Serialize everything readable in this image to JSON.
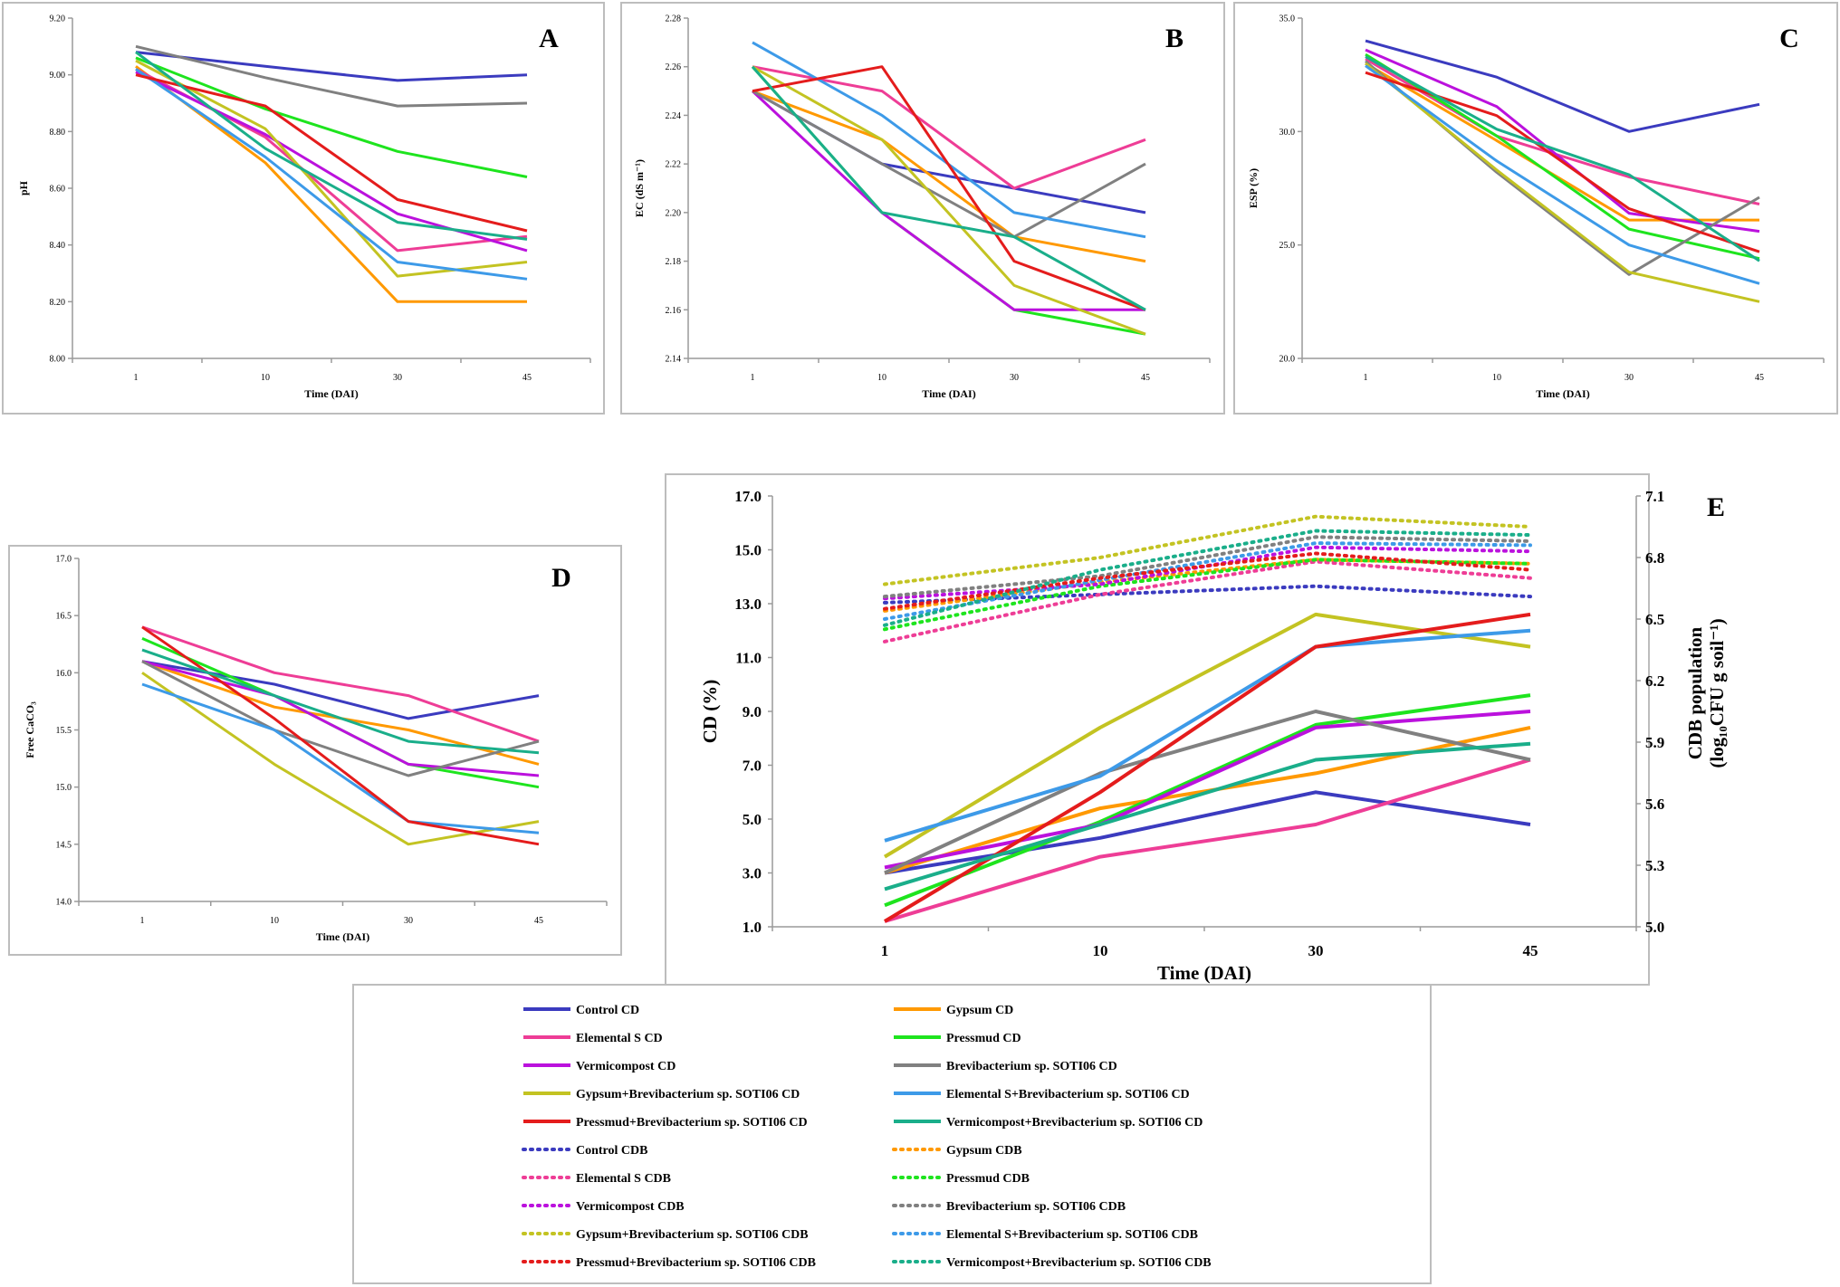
{
  "colors": {
    "Control": "#3b3bbf",
    "Gypsum": "#ff9900",
    "ElementalS": "#ee3d96",
    "Pressmud": "#1ee41e",
    "Vermicompost": "#bb11dd",
    "Brev": "#808080",
    "GypsumBrev": "#c3c322",
    "ElementalSBrev": "#3d9ae8",
    "PressmudBrev": "#e41c1c",
    "VermiBrev": "#1aae8a"
  },
  "chart_data": [
    {
      "id": "A",
      "type": "line",
      "panel_label": "A",
      "categories": [
        "1",
        "10",
        "30",
        "45"
      ],
      "xlabel": "Time (DAI)",
      "ylabel": "pH",
      "ylim": [
        8.0,
        9.2
      ],
      "yticks": [
        "8.00",
        "8.20",
        "8.40",
        "8.60",
        "8.80",
        "9.00",
        "9.20"
      ],
      "series": [
        {
          "name": "Control",
          "values": [
            9.08,
            9.03,
            8.98,
            9.0
          ]
        },
        {
          "name": "Gypsum",
          "values": [
            9.03,
            8.69,
            8.2,
            8.2
          ]
        },
        {
          "name": "ElementalS",
          "values": [
            9.02,
            8.78,
            8.38,
            8.43
          ]
        },
        {
          "name": "Pressmud",
          "values": [
            9.06,
            8.88,
            8.73,
            8.64
          ]
        },
        {
          "name": "Vermicompost",
          "values": [
            9.01,
            8.79,
            8.51,
            8.38
          ]
        },
        {
          "name": "Brev",
          "values": [
            9.1,
            8.99,
            8.89,
            8.9
          ]
        },
        {
          "name": "GypsumBrev",
          "values": [
            9.05,
            8.81,
            8.29,
            8.34
          ]
        },
        {
          "name": "ElementalSBrev",
          "values": [
            9.02,
            8.71,
            8.34,
            8.28
          ]
        },
        {
          "name": "PressmudBrev",
          "values": [
            9.0,
            8.89,
            8.56,
            8.45
          ]
        },
        {
          "name": "VermiBrev",
          "values": [
            9.08,
            8.74,
            8.48,
            8.42
          ]
        }
      ]
    },
    {
      "id": "B",
      "type": "line",
      "panel_label": "B",
      "categories": [
        "1",
        "10",
        "30",
        "45"
      ],
      "xlabel": "Time (DAI)",
      "ylabel": "EC (dS m⁻¹)",
      "ylim": [
        2.14,
        2.28
      ],
      "yticks": [
        "2.14",
        "2.16",
        "2.18",
        "2.20",
        "2.22",
        "2.24",
        "2.26",
        "2.28"
      ],
      "series": [
        {
          "name": "Control",
          "values": [
            2.25,
            2.22,
            2.21,
            2.2
          ]
        },
        {
          "name": "Gypsum",
          "values": [
            2.25,
            2.23,
            2.19,
            2.18
          ]
        },
        {
          "name": "ElementalS",
          "values": [
            2.26,
            2.25,
            2.21,
            2.23
          ]
        },
        {
          "name": "Pressmud",
          "values": [
            2.26,
            2.2,
            2.16,
            2.15
          ]
        },
        {
          "name": "Vermicompost",
          "values": [
            2.25,
            2.2,
            2.16,
            2.16
          ]
        },
        {
          "name": "Brev",
          "values": [
            2.25,
            2.22,
            2.19,
            2.22
          ]
        },
        {
          "name": "GypsumBrev",
          "values": [
            2.26,
            2.23,
            2.17,
            2.15
          ]
        },
        {
          "name": "ElementalSBrev",
          "values": [
            2.27,
            2.24,
            2.2,
            2.19
          ]
        },
        {
          "name": "PressmudBrev",
          "values": [
            2.25,
            2.26,
            2.18,
            2.16
          ]
        },
        {
          "name": "VermiBrev",
          "values": [
            2.26,
            2.2,
            2.19,
            2.16
          ]
        }
      ]
    },
    {
      "id": "C",
      "type": "line",
      "panel_label": "C",
      "categories": [
        "1",
        "10",
        "30",
        "45"
      ],
      "xlabel": "Time (DAI)",
      "ylabel": "ESP (%)",
      "ylim": [
        20.0,
        35.0
      ],
      "yticks": [
        "20.0",
        "25.0",
        "30.0",
        "35.0"
      ],
      "series": [
        {
          "name": "Control",
          "values": [
            34.0,
            32.4,
            30.0,
            31.2
          ]
        },
        {
          "name": "Gypsum",
          "values": [
            33.0,
            29.6,
            26.1,
            26.1
          ]
        },
        {
          "name": "ElementalS",
          "values": [
            33.2,
            29.8,
            28.0,
            26.8
          ]
        },
        {
          "name": "Pressmud",
          "values": [
            33.4,
            29.8,
            25.7,
            24.4
          ]
        },
        {
          "name": "Vermicompost",
          "values": [
            33.6,
            31.1,
            26.4,
            25.6
          ]
        },
        {
          "name": "Brev",
          "values": [
            33.1,
            28.2,
            23.7,
            27.1
          ]
        },
        {
          "name": "GypsumBrev",
          "values": [
            33.0,
            28.3,
            23.8,
            22.5
          ]
        },
        {
          "name": "ElementalSBrev",
          "values": [
            32.9,
            28.7,
            25.0,
            23.3
          ]
        },
        {
          "name": "PressmudBrev",
          "values": [
            32.6,
            30.7,
            26.6,
            24.7
          ]
        },
        {
          "name": "VermiBrev",
          "values": [
            33.3,
            30.1,
            28.1,
            24.3
          ]
        }
      ]
    },
    {
      "id": "D",
      "type": "line",
      "panel_label": "D",
      "categories": [
        "1",
        "10",
        "30",
        "45"
      ],
      "xlabel": "Time (DAI)",
      "ylabel": "Free CaCO₃",
      "ylim": [
        14.0,
        17.0
      ],
      "yticks": [
        "14.0",
        "14.5",
        "15.0",
        "15.5",
        "16.0",
        "16.5",
        "17.0"
      ],
      "series": [
        {
          "name": "Control",
          "values": [
            16.1,
            15.9,
            15.6,
            15.8
          ]
        },
        {
          "name": "Gypsum",
          "values": [
            16.1,
            15.7,
            15.5,
            15.2
          ]
        },
        {
          "name": "ElementalS",
          "values": [
            16.4,
            16.0,
            15.8,
            15.4
          ]
        },
        {
          "name": "Pressmud",
          "values": [
            16.3,
            15.8,
            15.2,
            15.0
          ]
        },
        {
          "name": "Vermicompost",
          "values": [
            16.1,
            15.8,
            15.2,
            15.1
          ]
        },
        {
          "name": "Brev",
          "values": [
            16.1,
            15.5,
            15.1,
            15.4
          ]
        },
        {
          "name": "GypsumBrev",
          "values": [
            16.0,
            15.2,
            14.5,
            14.7
          ]
        },
        {
          "name": "ElementalSBrev",
          "values": [
            15.9,
            15.5,
            14.7,
            14.6
          ]
        },
        {
          "name": "PressmudBrev",
          "values": [
            16.4,
            15.6,
            14.7,
            14.5
          ]
        },
        {
          "name": "VermiBrev",
          "values": [
            16.2,
            15.8,
            15.4,
            15.3
          ]
        }
      ]
    },
    {
      "id": "E",
      "type": "line",
      "panel_label": "E",
      "categories": [
        "1",
        "10",
        "30",
        "45"
      ],
      "xlabel": "Time (DAI)",
      "ylabel": "CD (%)",
      "y2label_line1": "CDB population",
      "y2label_line2": "(log₁₀CFU g soil⁻¹)",
      "ylim": [
        1.0,
        17.0
      ],
      "y2lim": [
        5.0,
        7.1
      ],
      "yticks": [
        "1.0",
        "3.0",
        "5.0",
        "7.0",
        "9.0",
        "11.0",
        "13.0",
        "15.0",
        "17.0"
      ],
      "y2ticks": [
        "5.0",
        "5.3",
        "5.6",
        "5.9",
        "6.2",
        "6.5",
        "6.8",
        "7.1"
      ],
      "series": [
        {
          "name": "Control",
          "axis": "CD",
          "values": [
            3.0,
            4.3,
            6.0,
            4.8
          ]
        },
        {
          "name": "Gypsum",
          "axis": "CD",
          "values": [
            3.0,
            5.4,
            6.7,
            8.4
          ]
        },
        {
          "name": "ElementalS",
          "axis": "CD",
          "values": [
            1.2,
            3.6,
            4.8,
            7.2
          ]
        },
        {
          "name": "Pressmud",
          "axis": "CD",
          "values": [
            1.8,
            4.9,
            8.5,
            9.6
          ]
        },
        {
          "name": "Vermicompost",
          "axis": "CD",
          "values": [
            3.2,
            4.8,
            8.4,
            9.0
          ]
        },
        {
          "name": "Brev",
          "axis": "CD",
          "values": [
            3.0,
            6.7,
            9.0,
            7.2
          ]
        },
        {
          "name": "GypsumBrev",
          "axis": "CD",
          "values": [
            3.6,
            8.4,
            12.6,
            11.4
          ]
        },
        {
          "name": "ElementalSBrev",
          "axis": "CD",
          "values": [
            4.2,
            6.6,
            11.4,
            12.0
          ]
        },
        {
          "name": "PressmudBrev",
          "axis": "CD",
          "values": [
            1.2,
            6.0,
            11.4,
            12.6
          ]
        },
        {
          "name": "VermiBrev",
          "axis": "CD",
          "values": [
            2.4,
            4.8,
            7.2,
            7.8
          ]
        },
        {
          "name": "Control",
          "axis": "CDB",
          "values": [
            6.58,
            6.62,
            6.66,
            6.61
          ]
        },
        {
          "name": "Gypsum",
          "axis": "CDB",
          "values": [
            6.54,
            6.68,
            6.79,
            6.77
          ]
        },
        {
          "name": "ElementalS",
          "axis": "CDB",
          "values": [
            6.39,
            6.62,
            6.78,
            6.7
          ]
        },
        {
          "name": "Pressmud",
          "axis": "CDB",
          "values": [
            6.45,
            6.66,
            6.79,
            6.77
          ]
        },
        {
          "name": "Vermicompost",
          "axis": "CDB",
          "values": [
            6.6,
            6.67,
            6.85,
            6.83
          ]
        },
        {
          "name": "Brev",
          "axis": "CDB",
          "values": [
            6.61,
            6.71,
            6.9,
            6.88
          ]
        },
        {
          "name": "GypsumBrev",
          "axis": "CDB",
          "values": [
            6.67,
            6.8,
            7.0,
            6.95
          ]
        },
        {
          "name": "ElementalSBrev",
          "axis": "CDB",
          "values": [
            6.5,
            6.69,
            6.87,
            6.86
          ]
        },
        {
          "name": "PressmudBrev",
          "axis": "CDB",
          "values": [
            6.55,
            6.7,
            6.82,
            6.74
          ]
        },
        {
          "name": "VermiBrev",
          "axis": "CDB",
          "values": [
            6.47,
            6.74,
            6.93,
            6.91
          ]
        }
      ]
    }
  ],
  "legend": [
    {
      "label": "Control CD",
      "series": "Control",
      "dash": false
    },
    {
      "label": "Gypsum CD",
      "series": "Gypsum",
      "dash": false
    },
    {
      "label": "Elemental S CD",
      "series": "ElementalS",
      "dash": false
    },
    {
      "label": "Pressmud CD",
      "series": "Pressmud",
      "dash": false
    },
    {
      "label": "Vermicompost CD",
      "series": "Vermicompost",
      "dash": false
    },
    {
      "label": "Brevibacterium sp. SOTI06 CD",
      "series": "Brev",
      "dash": false
    },
    {
      "label": "Gypsum+Brevibacterium sp. SOTI06 CD",
      "series": "GypsumBrev",
      "dash": false
    },
    {
      "label": "Elemental S+Brevibacterium sp. SOTI06 CD",
      "series": "ElementalSBrev",
      "dash": false
    },
    {
      "label": "Pressmud+Brevibacterium sp. SOTI06 CD",
      "series": "PressmudBrev",
      "dash": false
    },
    {
      "label": "Vermicompost+Brevibacterium sp. SOTI06 CD",
      "series": "VermiBrev",
      "dash": false
    },
    {
      "label": "Control CDB",
      "series": "Control",
      "dash": true
    },
    {
      "label": "Gypsum CDB",
      "series": "Gypsum",
      "dash": true
    },
    {
      "label": "Elemental S CDB",
      "series": "ElementalS",
      "dash": true
    },
    {
      "label": "Pressmud CDB",
      "series": "Pressmud",
      "dash": true
    },
    {
      "label": "Vermicompost CDB",
      "series": "Vermicompost",
      "dash": true
    },
    {
      "label": "Brevibacterium sp. SOTI06 CDB",
      "series": "Brev",
      "dash": true
    },
    {
      "label": "Gypsum+Brevibacterium sp. SOTI06 CDB",
      "series": "GypsumBrev",
      "dash": true
    },
    {
      "label": "Elemental S+Brevibacterium sp. SOTI06 CDB",
      "series": "ElementalSBrev",
      "dash": true
    },
    {
      "label": "Pressmud+Brevibacterium sp. SOTI06 CDB",
      "series": "PressmudBrev",
      "dash": true
    },
    {
      "label": "Vermicompost+Brevibacterium sp. SOTI06 CDB",
      "series": "VermiBrev",
      "dash": true
    }
  ]
}
